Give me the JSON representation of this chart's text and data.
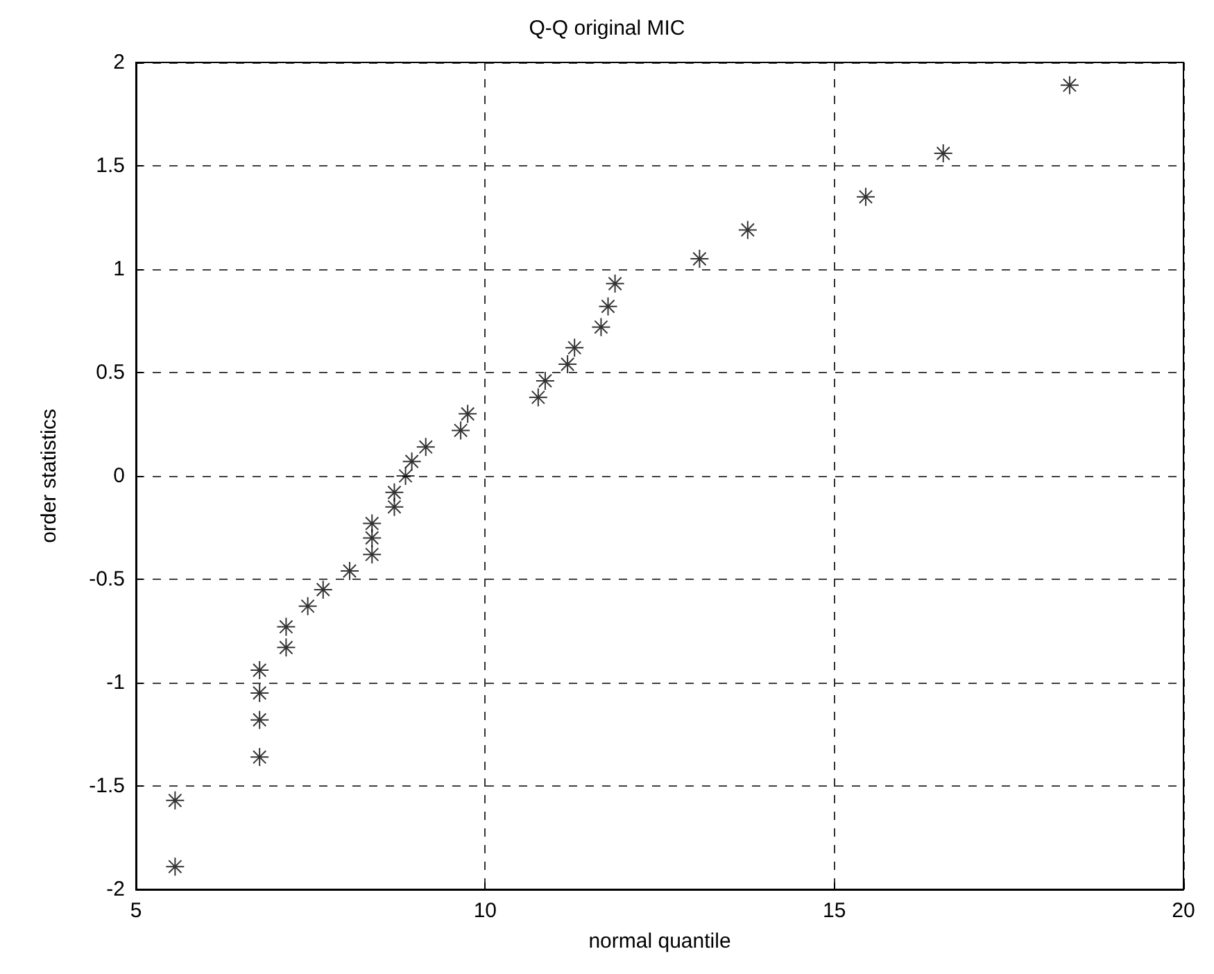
{
  "chart_data": {
    "type": "scatter",
    "title": "Q-Q original MIC",
    "xlabel": "normal quantile",
    "ylabel": "order statistics",
    "x": [
      5.56,
      5.56,
      6.77,
      6.77,
      6.77,
      6.77,
      7.15,
      7.15,
      7.46,
      7.68,
      8.06,
      8.38,
      8.38,
      8.38,
      8.7,
      8.7,
      8.86,
      8.95,
      9.15,
      9.65,
      9.75,
      10.76,
      10.86,
      11.18,
      11.28,
      11.66,
      11.76,
      11.86,
      13.07,
      13.76,
      15.45,
      16.56,
      18.37
    ],
    "values": [
      -1.89,
      -1.57,
      -1.36,
      -1.18,
      -1.05,
      -0.94,
      -0.83,
      -0.73,
      -0.63,
      -0.55,
      -0.46,
      -0.38,
      -0.3,
      -0.23,
      -0.15,
      -0.08,
      0,
      0.07,
      0.14,
      0.22,
      0.3,
      0.38,
      0.46,
      0.54,
      0.62,
      0.72,
      0.82,
      0.93,
      1.05,
      1.19,
      1.35,
      1.56,
      1.89
    ],
    "color": "#000000",
    "marker": "cross",
    "grid": true,
    "xlim": [
      5,
      20
    ],
    "xticks": [
      5,
      10,
      15,
      20
    ],
    "ylim": [
      -2,
      2
    ],
    "yticks": [
      -2,
      -1.5,
      -1,
      -0.5,
      0,
      0.5,
      1,
      1.5,
      2
    ]
  }
}
